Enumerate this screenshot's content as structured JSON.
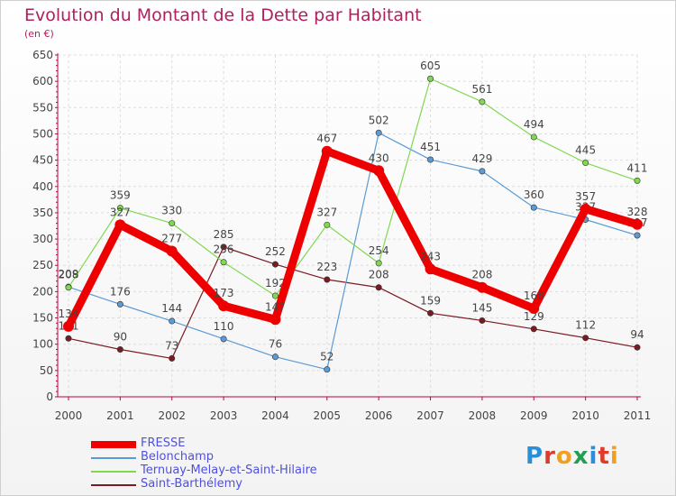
{
  "title": "Evolution du Montant de la Dette par Habitant",
  "unit_label": "(en €)",
  "logo": {
    "letters": [
      "P",
      "r",
      "o",
      "x",
      "i",
      "t",
      "i"
    ],
    "colors": [
      "#2a8fd8",
      "#e03a2a",
      "#f0a020",
      "#20a050",
      "#2a8fd8",
      "#e03a2a",
      "#f0a020"
    ]
  },
  "chart_data": {
    "type": "line",
    "title": "Evolution du Montant de la Dette par Habitant",
    "ylabel": "(en €)",
    "xlabel": "",
    "categories": [
      "2000",
      "2001",
      "2002",
      "2003",
      "2004",
      "2005",
      "2006",
      "2007",
      "2008",
      "2009",
      "2010",
      "2011"
    ],
    "ylim": [
      0,
      650
    ],
    "yticks": [
      0,
      50,
      100,
      150,
      200,
      250,
      300,
      350,
      400,
      450,
      500,
      550,
      600,
      650
    ],
    "grid": true,
    "legend_position": "bottom-left",
    "series": [
      {
        "name": "FRESSE",
        "color": "#ee0000",
        "values": [
          134,
          327,
          277,
          173,
          147,
          467,
          430,
          243,
          208,
          168,
          357,
          328
        ]
      },
      {
        "name": "Belonchamp",
        "color": "#5b9bd5",
        "values": [
          209,
          176,
          144,
          110,
          76,
          52,
          502,
          451,
          429,
          360,
          337,
          307
        ]
      },
      {
        "name": "Ternuay-Melay-et-Saint-Hilaire",
        "color": "#80d850",
        "values": [
          208,
          359,
          330,
          256,
          192,
          327,
          254,
          605,
          561,
          494,
          445,
          411
        ]
      },
      {
        "name": "Saint-Barthélemy",
        "color": "#7a1a22",
        "values": [
          111,
          90,
          73,
          285,
          252,
          223,
          208,
          159,
          145,
          129,
          112,
          94
        ]
      }
    ]
  }
}
